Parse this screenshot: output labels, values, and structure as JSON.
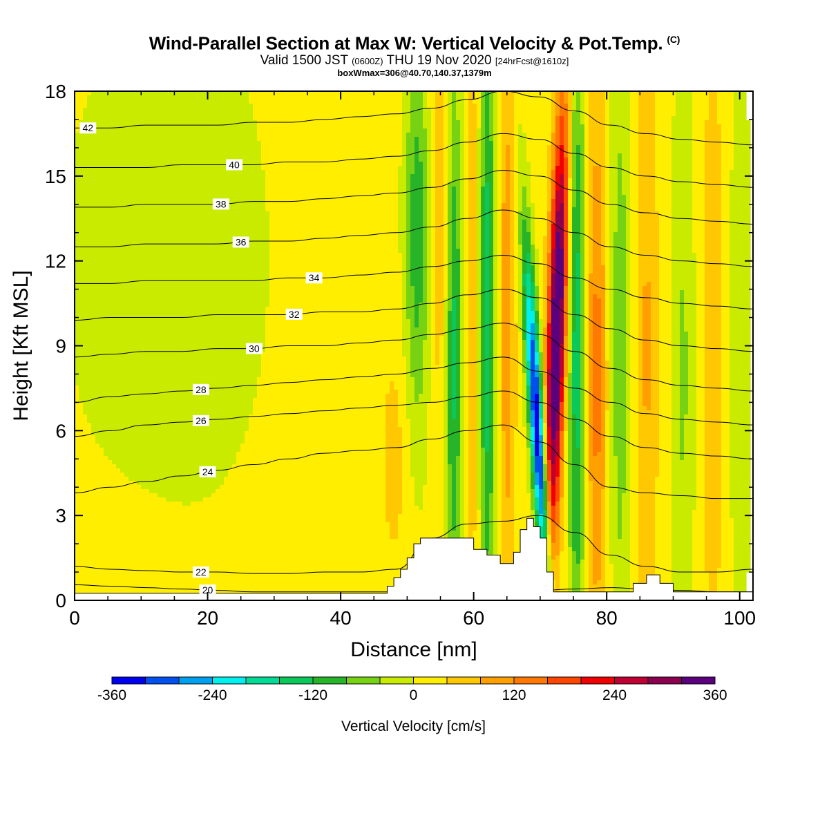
{
  "header": {
    "title": "Wind-Parallel Section at Max W: Vertical Velocity & Pot.Temp.",
    "copyright": "(C)",
    "valid_prefix": "Valid 1500 JST",
    "valid_utc": "(0600Z)",
    "valid_date": "THU 19 Nov 2020",
    "forecast": "[24hrFcst@1610z]",
    "box_info": "boxWmax=306@40.70,140.37,1379m"
  },
  "chart_data": {
    "type": "heatmap",
    "xlabel": "Distance [nm]",
    "ylabel": "Height [Kft MSL]",
    "xlim": [
      0,
      102
    ],
    "ylim": [
      0,
      18
    ],
    "x_ticks": [
      "0",
      "20",
      "40",
      "60",
      "80",
      "100"
    ],
    "y_ticks": [
      "0",
      "3",
      "6",
      "9",
      "12",
      "15",
      "18"
    ],
    "colorbar": {
      "label": "Vertical Velocity [cm/s]",
      "range": [
        -360,
        360
      ],
      "tick_labels": [
        "-360",
        "-240",
        "-120",
        "0",
        "120",
        "240",
        "360"
      ],
      "colors": [
        "#0000f0",
        "#0050f0",
        "#00a0f0",
        "#00f0f0",
        "#00dc96",
        "#0ac85a",
        "#28b428",
        "#78d214",
        "#c8eb00",
        "#ffee00",
        "#ffc800",
        "#ffa000",
        "#ff7800",
        "#ff4600",
        "#f00000",
        "#be0032",
        "#8c0050",
        "#5a007d"
      ]
    },
    "theta_contours": [
      {
        "label": "20",
        "values": [
          0.55,
          0.5,
          0.45,
          0.4,
          0.35,
          0.3,
          0.3,
          0.3,
          0.3,
          0.3,
          0.3,
          0.25,
          0.3,
          0.35,
          0.4,
          0.45,
          0.4,
          0.35,
          0.3,
          0.3
        ]
      },
      {
        "label": "22",
        "values": [
          1.2,
          1.1,
          1.05,
          1.0,
          1.0,
          0.95,
          0.95,
          1.0,
          1.0,
          1.1,
          2.2,
          2.7,
          2.8,
          3.0,
          2.4,
          1.6,
          1.2,
          1.0,
          1.0,
          1.1
        ]
      },
      {
        "label": "24",
        "values": [
          3.8,
          4.0,
          4.2,
          4.4,
          4.6,
          4.8,
          5.0,
          5.2,
          5.3,
          5.4,
          5.7,
          6.0,
          6.2,
          5.6,
          4.8,
          4.0,
          3.8,
          3.7,
          3.6,
          3.6
        ]
      },
      {
        "label": "26",
        "values": [
          5.8,
          6.0,
          6.2,
          6.3,
          6.4,
          6.5,
          6.6,
          6.7,
          6.8,
          6.9,
          7.0,
          7.2,
          7.4,
          7.0,
          6.4,
          5.8,
          5.4,
          5.2,
          5.1,
          5.0
        ]
      },
      {
        "label": "28",
        "values": [
          7.0,
          7.2,
          7.3,
          7.4,
          7.5,
          7.6,
          7.7,
          7.8,
          7.9,
          8.0,
          8.2,
          8.4,
          8.6,
          8.1,
          7.5,
          7.0,
          6.6,
          6.4,
          6.3,
          6.2
        ]
      },
      {
        "label": "30",
        "values": [
          8.6,
          8.7,
          8.8,
          8.8,
          8.9,
          8.9,
          9.0,
          9.0,
          9.1,
          9.2,
          9.4,
          9.6,
          9.8,
          9.4,
          8.8,
          8.2,
          7.8,
          7.6,
          7.5,
          7.4
        ]
      },
      {
        "label": "32",
        "values": [
          9.9,
          10.0,
          10.0,
          10.0,
          10.1,
          10.1,
          10.1,
          10.2,
          10.2,
          10.3,
          10.5,
          10.8,
          11.0,
          10.7,
          10.1,
          9.6,
          9.2,
          9.0,
          8.9,
          8.8
        ]
      },
      {
        "label": "34",
        "values": [
          11.2,
          11.2,
          11.3,
          11.3,
          11.3,
          11.3,
          11.4,
          11.4,
          11.5,
          11.6,
          11.8,
          12.0,
          12.2,
          11.9,
          11.4,
          11.0,
          10.7,
          10.5,
          10.4,
          10.3
        ]
      },
      {
        "label": "36",
        "values": [
          12.5,
          12.5,
          12.6,
          12.6,
          12.6,
          12.7,
          12.7,
          12.8,
          12.9,
          13.0,
          13.2,
          13.5,
          13.8,
          13.5,
          13.0,
          12.5,
          12.2,
          12.0,
          11.9,
          11.8
        ]
      },
      {
        "label": "38",
        "values": [
          13.9,
          13.9,
          14.0,
          14.0,
          14.0,
          14.1,
          14.1,
          14.2,
          14.3,
          14.4,
          14.6,
          14.9,
          15.2,
          15.0,
          14.5,
          14.0,
          13.7,
          13.5,
          13.4,
          13.3
        ]
      },
      {
        "label": "40",
        "values": [
          15.3,
          15.3,
          15.3,
          15.4,
          15.4,
          15.4,
          15.5,
          15.5,
          15.6,
          15.7,
          15.9,
          16.2,
          16.5,
          16.3,
          15.8,
          15.3,
          15.0,
          14.8,
          14.7,
          14.6
        ]
      },
      {
        "label": "42",
        "values": [
          16.7,
          16.7,
          16.8,
          16.8,
          16.8,
          16.9,
          16.9,
          17.0,
          17.1,
          17.2,
          17.4,
          17.7,
          18.0,
          17.8,
          17.3,
          16.8,
          16.5,
          16.3,
          16.2,
          16.1
        ]
      }
    ],
    "terrain": {
      "x": [
        0,
        46,
        47,
        48,
        49,
        50,
        51,
        52,
        58,
        60,
        62,
        64,
        66,
        67,
        68,
        69,
        70,
        71,
        72,
        82,
        84,
        86,
        88,
        90,
        102
      ],
      "height": [
        0.25,
        0.25,
        0.5,
        0.8,
        1.1,
        1.5,
        2.0,
        2.2,
        2.2,
        1.8,
        1.6,
        1.3,
        1.7,
        2.5,
        2.9,
        2.6,
        2.2,
        1.0,
        0.3,
        0.3,
        0.6,
        0.9,
        0.6,
        0.3,
        0.3
      ]
    }
  }
}
